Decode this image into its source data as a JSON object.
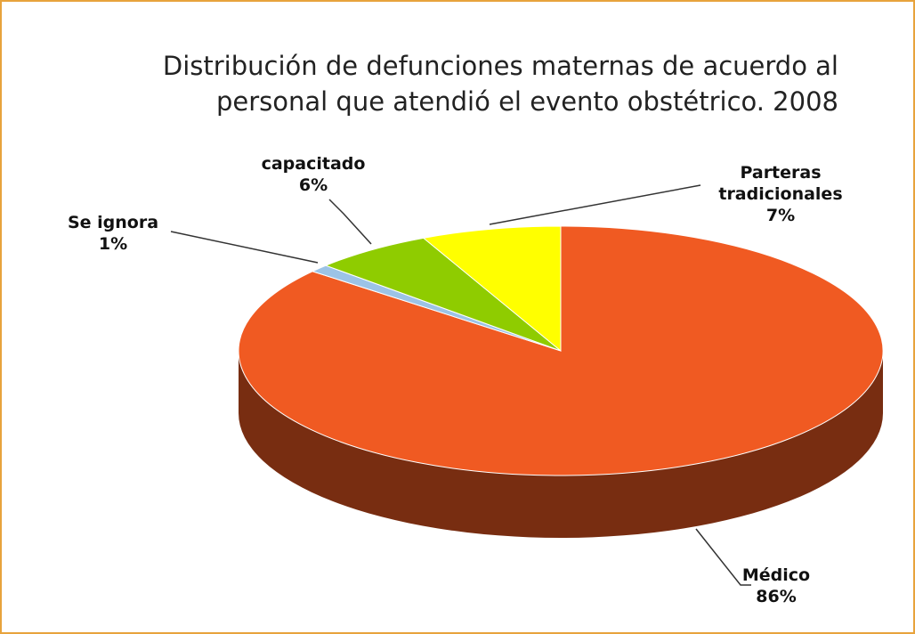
{
  "chart_data": {
    "type": "pie",
    "title": "Distribución de defunciones maternas de acuerdo al personal que atendió el evento obstétrico. 2008",
    "categories": [
      "Médico",
      "Se ignora",
      "capacitado",
      "Parteras tradicionales"
    ],
    "values": [
      86,
      1,
      6,
      7
    ],
    "value_labels": [
      "86%",
      "1%",
      "6%",
      "7%"
    ],
    "colors": [
      "#f05a22",
      "#9cc3e6",
      "#8fcc00",
      "#ffff00"
    ]
  }
}
